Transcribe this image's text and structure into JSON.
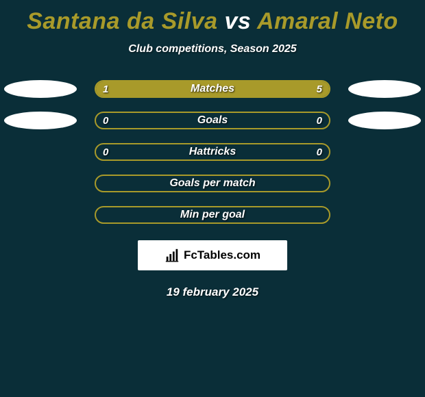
{
  "background_color": "#0a2e38",
  "accent_color": "#a89a2a",
  "title": {
    "player1": "Santana da Silva",
    "vs": "vs",
    "player2": "Amaral Neto",
    "player1_color": "#a89a2a",
    "vs_color": "#ffffff",
    "player2_color": "#a89a2a",
    "fontsize": 34
  },
  "subtitle": "Club competitions, Season 2025",
  "pill_color": "#ffffff",
  "rows": [
    {
      "label": "Matches",
      "left_value": "1",
      "right_value": "5",
      "has_pills": true,
      "left_fill_pct": 16.7,
      "right_fill_pct": 83.3,
      "left_fill_color": "#a89a2a",
      "right_fill_color": "#a89a2a",
      "border_color": "#a89a2a"
    },
    {
      "label": "Goals",
      "left_value": "0",
      "right_value": "0",
      "has_pills": true,
      "left_fill_pct": 0,
      "right_fill_pct": 0,
      "left_fill_color": "#a89a2a",
      "right_fill_color": "#a89a2a",
      "border_color": "#a89a2a"
    },
    {
      "label": "Hattricks",
      "left_value": "0",
      "right_value": "0",
      "has_pills": false,
      "left_fill_pct": 0,
      "right_fill_pct": 0,
      "left_fill_color": "#a89a2a",
      "right_fill_color": "#a89a2a",
      "border_color": "#a89a2a"
    },
    {
      "label": "Goals per match",
      "left_value": "",
      "right_value": "",
      "has_pills": false,
      "left_fill_pct": 0,
      "right_fill_pct": 0,
      "left_fill_color": "#a89a2a",
      "right_fill_color": "#a89a2a",
      "border_color": "#a89a2a"
    },
    {
      "label": "Min per goal",
      "left_value": "",
      "right_value": "",
      "has_pills": false,
      "left_fill_pct": 0,
      "right_fill_pct": 0,
      "left_fill_color": "#a89a2a",
      "right_fill_color": "#a89a2a",
      "border_color": "#a89a2a"
    }
  ],
  "brand": {
    "text": "FcTables.com",
    "icon": "bar-chart-icon"
  },
  "date": "19 february 2025"
}
